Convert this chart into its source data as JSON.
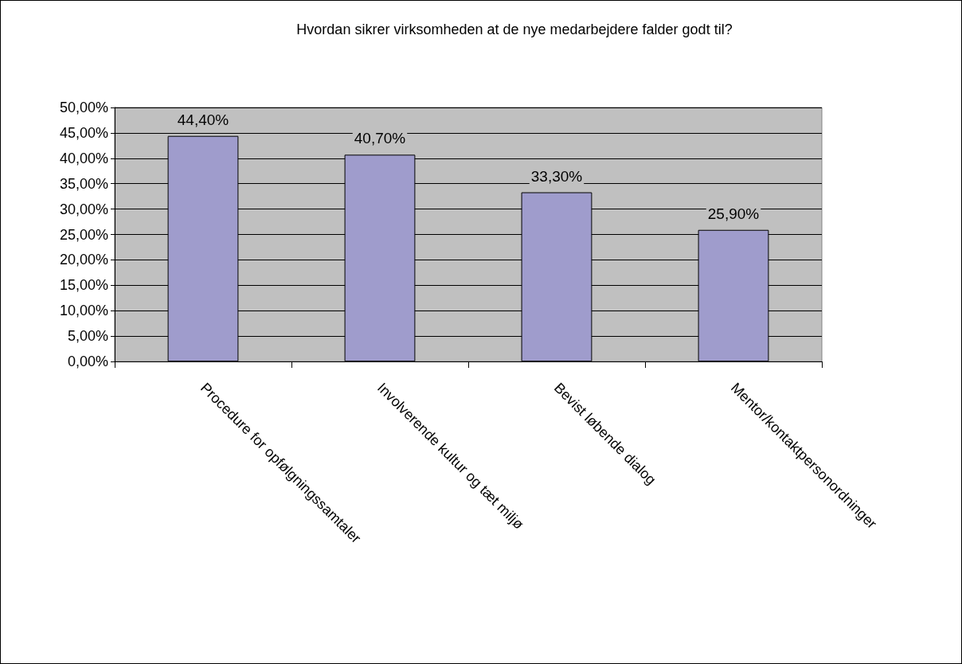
{
  "chart_data": {
    "type": "bar",
    "title": "Hvordan sikrer virksomheden at de nye medarbejdere falder godt til?",
    "categories": [
      "Procedure for opfølgningssamtaler",
      "Involverende kultur og tæt miljø",
      "Bevist løbende dialog",
      "Mentor/kontaktpersonordninger"
    ],
    "values": [
      44.4,
      40.7,
      33.3,
      25.9
    ],
    "value_labels": [
      "44,40%",
      "40,70%",
      "33,30%",
      "25,90%"
    ],
    "color": "#9f9ccc",
    "ylim": [
      0,
      50
    ],
    "yticks": [
      {
        "value": 0,
        "label": "0,00%"
      },
      {
        "value": 5,
        "label": "5,00%"
      },
      {
        "value": 10,
        "label": "10,00%"
      },
      {
        "value": 15,
        "label": "15,00%"
      },
      {
        "value": 20,
        "label": "20,00%"
      },
      {
        "value": 25,
        "label": "25,00%"
      },
      {
        "value": 30,
        "label": "30,00%"
      },
      {
        "value": 35,
        "label": "35,00%"
      },
      {
        "value": 40,
        "label": "40,00%"
      },
      {
        "value": 45,
        "label": "45,00%"
      },
      {
        "value": 50,
        "label": "50,00%"
      }
    ],
    "grid": "y"
  }
}
